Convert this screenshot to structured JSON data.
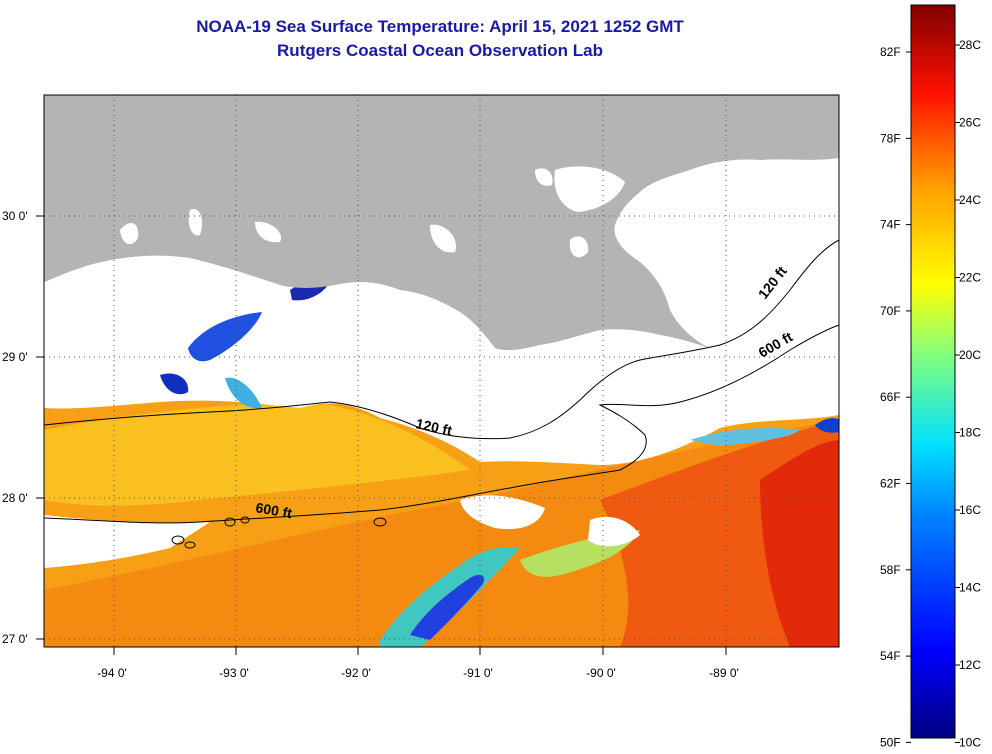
{
  "title_line1": "NOAA-19 Sea Surface Temperature:  April 15, 2021 1252 GMT",
  "title_line2": "Rutgers Coastal Ocean Observation Lab",
  "map": {
    "lon_ticks": [
      "-94 0'",
      "-93 0'",
      "-92 0'",
      "-91 0'",
      "-90 0'",
      "-89 0'"
    ],
    "lat_ticks": [
      "30 0'",
      "29 0'",
      "28 0'",
      "27 0'"
    ],
    "contours": [
      {
        "label": "120 ft"
      },
      {
        "label": "120 ft"
      },
      {
        "label": "600 ft"
      },
      {
        "label": "600 ft"
      }
    ],
    "colors": {
      "land": "#b4b4b4",
      "cloud": "#ffffff",
      "grid": "#555555"
    }
  },
  "colorbar": {
    "fahrenheit_labels": [
      "82F",
      "78F",
      "74F",
      "70F",
      "66F",
      "62F",
      "58F",
      "54F",
      "50F"
    ],
    "celsius_labels": [
      "28C",
      "26C",
      "24C",
      "22C",
      "20C",
      "18C",
      "16C",
      "14C",
      "12C",
      "10C"
    ],
    "colors": [
      "#000080",
      "#0000ff",
      "#0080ff",
      "#00ffff",
      "#80ff80",
      "#ffff00",
      "#ff8000",
      "#ff0000",
      "#800000"
    ]
  }
}
